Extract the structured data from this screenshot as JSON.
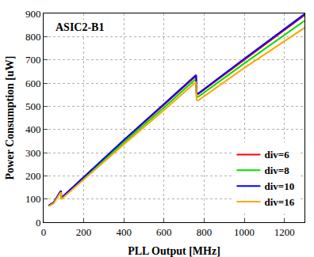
{
  "chart_data": {
    "type": "line",
    "title": "ASIC2-B1",
    "x_label": "PLL Output [MHz]",
    "y_label": "Power Consumption [uW]",
    "x": [
      25,
      50,
      80,
      87,
      88,
      200,
      400,
      600,
      750,
      760,
      762,
      770,
      1000,
      1300
    ],
    "series": [
      {
        "name": "div=6",
        "color": "#ff0000",
        "values": [
          71,
          84,
          127,
          134,
          104,
          193,
          352,
          506,
          624,
          631,
          556,
          552,
          700,
          892
        ]
      },
      {
        "name": "div=8",
        "color": "#00dd00",
        "values": [
          70,
          83,
          125,
          132,
          102,
          189,
          344,
          494,
          612,
          619,
          545,
          540,
          685,
          868
        ]
      },
      {
        "name": "div=10",
        "color": "#0000ff",
        "values": [
          72,
          85,
          128,
          135,
          105,
          195,
          355,
          510,
          628,
          635,
          560,
          555,
          705,
          897
        ]
      },
      {
        "name": "div=16",
        "color": "#ffa500",
        "values": [
          69,
          81,
          122,
          129,
          99,
          184,
          336,
          483,
          598,
          605,
          528,
          525,
          665,
          838
        ]
      }
    ],
    "xlim": [
      0,
      1300
    ],
    "xticks": [
      0,
      200,
      400,
      600,
      800,
      1000,
      1200
    ],
    "ylim": [
      0,
      900
    ],
    "yticks": [
      0,
      100,
      200,
      300,
      400,
      500,
      600,
      700,
      800,
      900
    ],
    "grid": true,
    "legend": "lower right"
  }
}
